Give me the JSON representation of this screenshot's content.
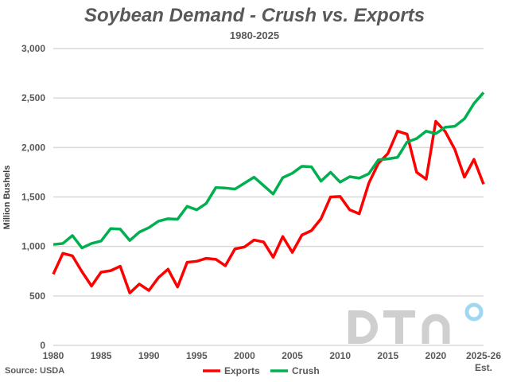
{
  "chart_data": {
    "type": "line",
    "title": "Soybean Demand - Crush vs. Exports",
    "subtitle": "1980-2025",
    "ylabel": "Million Bushels",
    "xlabel": "",
    "ylim": [
      0,
      3000
    ],
    "yticks": [
      0,
      500,
      1000,
      1500,
      2000,
      2500,
      3000
    ],
    "ytick_labels": [
      "0",
      "500",
      "1,000",
      "1,500",
      "2,000",
      "2,500",
      "3,000"
    ],
    "xticks": [
      1980,
      1985,
      1990,
      1995,
      2000,
      2005,
      2010,
      2015,
      2020,
      2025
    ],
    "xtick_labels": [
      "1980",
      "1985",
      "1990",
      "1995",
      "2000",
      "2005",
      "2010",
      "2015",
      "2020",
      "2025-26"
    ],
    "xtick_sublabel": "Est.",
    "grid": true,
    "legend_position": "bottom-center",
    "x": [
      1980,
      1981,
      1982,
      1983,
      1984,
      1985,
      1986,
      1987,
      1988,
      1989,
      1990,
      1991,
      1992,
      1993,
      1994,
      1995,
      1996,
      1997,
      1998,
      1999,
      2000,
      2001,
      2002,
      2003,
      2004,
      2005,
      2006,
      2007,
      2008,
      2009,
      2010,
      2011,
      2012,
      2013,
      2014,
      2015,
      2016,
      2017,
      2018,
      2019,
      2020,
      2021,
      2022,
      2023,
      2024,
      2025
    ],
    "series": [
      {
        "name": "Exports",
        "color": "#ff0000",
        "values": [
          720,
          930,
          905,
          745,
          600,
          740,
          755,
          800,
          530,
          620,
          555,
          685,
          770,
          590,
          840,
          850,
          880,
          870,
          805,
          975,
          995,
          1065,
          1045,
          890,
          1100,
          940,
          1115,
          1160,
          1280,
          1500,
          1505,
          1370,
          1330,
          1640,
          1840,
          1940,
          2165,
          2135,
          1750,
          1680,
          2265,
          2160,
          1980,
          1700,
          1880,
          1630
        ]
      },
      {
        "name": "Crush",
        "color": "#00b050",
        "values": [
          1020,
          1030,
          1110,
          985,
          1030,
          1055,
          1180,
          1175,
          1060,
          1145,
          1190,
          1255,
          1280,
          1275,
          1405,
          1370,
          1435,
          1595,
          1590,
          1580,
          1640,
          1700,
          1615,
          1530,
          1695,
          1740,
          1810,
          1805,
          1660,
          1750,
          1650,
          1705,
          1690,
          1735,
          1875,
          1885,
          1900,
          2055,
          2090,
          2165,
          2140,
          2205,
          2215,
          2290,
          2445,
          2555
        ]
      }
    ]
  },
  "source": "Source: USDA",
  "logo_text": "DTN"
}
